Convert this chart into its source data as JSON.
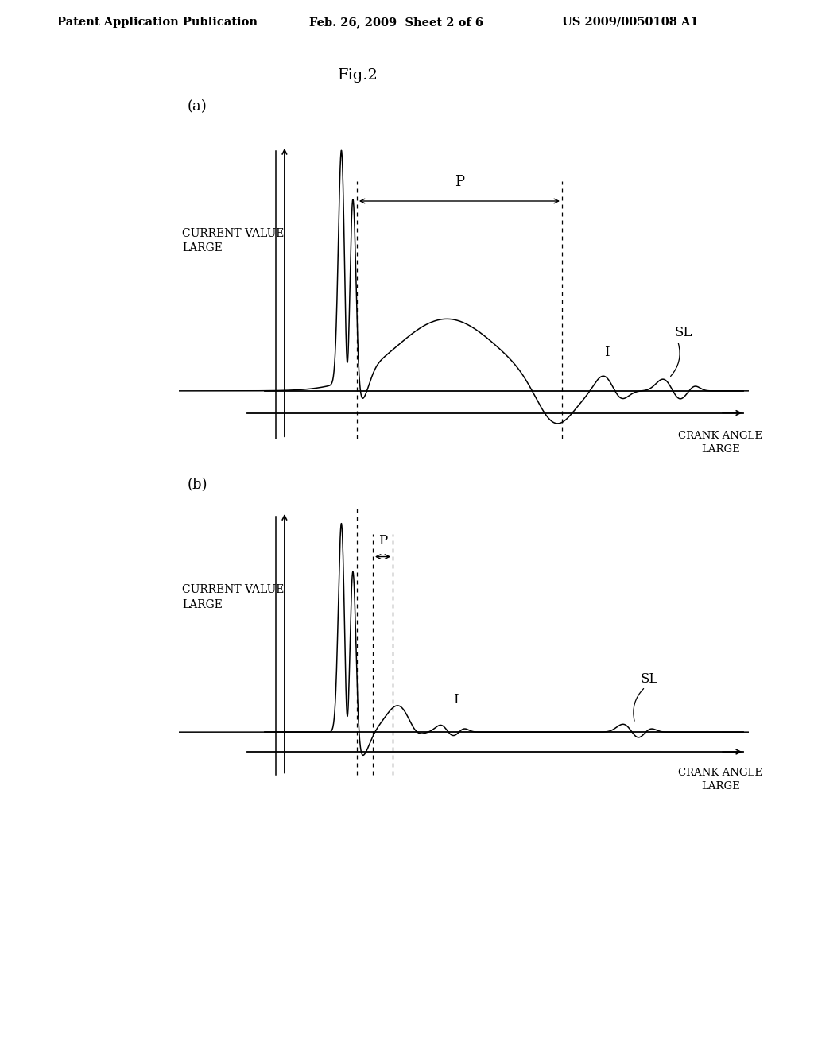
{
  "header_text": "Patent Application Publication",
  "header_date": "Feb. 26, 2009  Sheet 2 of 6",
  "header_patent": "US 2009/0050108 A1",
  "fig_title": "Fig.2",
  "subplot_a_label": "(a)",
  "subplot_b_label": "(b)",
  "ylabel_line1": "CURRENT VALUE",
  "ylabel_line2": "LARGE",
  "xlabel_line1": "CRANK ANGLE",
  "xlabel_line2": "LARGE",
  "label_P": "P",
  "label_I": "I",
  "label_SL": "SL"
}
